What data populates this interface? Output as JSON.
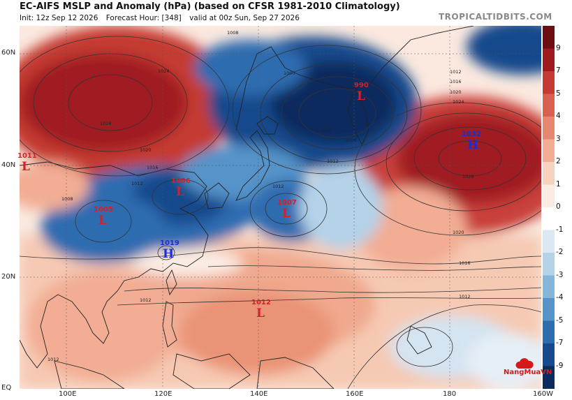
{
  "header": {
    "title": "EC-AIFS MSLP and Anomaly (hPa) (based on CFSR 1981-2010 Climatology)",
    "init": "Init: 12z Sep 12 2026",
    "forecast_hour": "Forecast Hour: [348]",
    "valid": "valid at 00z Sun, Sep 27 2026",
    "brand": "TROPICALTIDBITS.COM"
  },
  "axes": {
    "lat_labels": [
      "60N",
      "40N",
      "20N",
      "EQ"
    ],
    "lon_labels": [
      "100E",
      "120E",
      "140E",
      "160E",
      "180",
      "160W"
    ]
  },
  "colorbar": {
    "labels": [
      "9",
      "7",
      "5",
      "4",
      "3",
      "2",
      "1",
      "0",
      "-1",
      "-2",
      "-3",
      "-4",
      "-5",
      "-7",
      "-9"
    ],
    "colors": [
      "#6e0d12",
      "#9e1a1d",
      "#c53a33",
      "#d9604e",
      "#e8876f",
      "#f2ad94",
      "#f8d2bf",
      "#fbece3",
      "#ffffff",
      "#dbe8f3",
      "#b4d2e8",
      "#86b5da",
      "#5593c8",
      "#2e6cb0",
      "#174a8c",
      "#0b2b5e"
    ]
  },
  "systems": [
    {
      "value": "990",
      "letter": "L",
      "color": "#d4202a"
    },
    {
      "value": "1032",
      "letter": "H",
      "color": "#1a2fd0"
    },
    {
      "value": "1011",
      "letter": "L",
      "color": "#d4202a"
    },
    {
      "value": "1006",
      "letter": "L",
      "color": "#d4202a"
    },
    {
      "value": "1005",
      "letter": "L",
      "color": "#d4202a"
    },
    {
      "value": "1007",
      "letter": "L",
      "color": "#d4202a"
    },
    {
      "value": "1019",
      "letter": "H",
      "color": "#1a2fd0"
    },
    {
      "value": "1012",
      "letter": "L",
      "color": "#d4202a"
    }
  ],
  "isobar_labels": [
    "1008",
    "1020",
    "1024",
    "1028",
    "1000",
    "1004",
    "1008",
    "1012",
    "1016",
    "1020",
    "1024",
    "1028",
    "1016",
    "1012",
    "1012",
    "1012",
    "1020",
    "1016",
    "1012",
    "1012",
    "1008",
    "1012"
  ],
  "watermark": "NangMuaVN"
}
